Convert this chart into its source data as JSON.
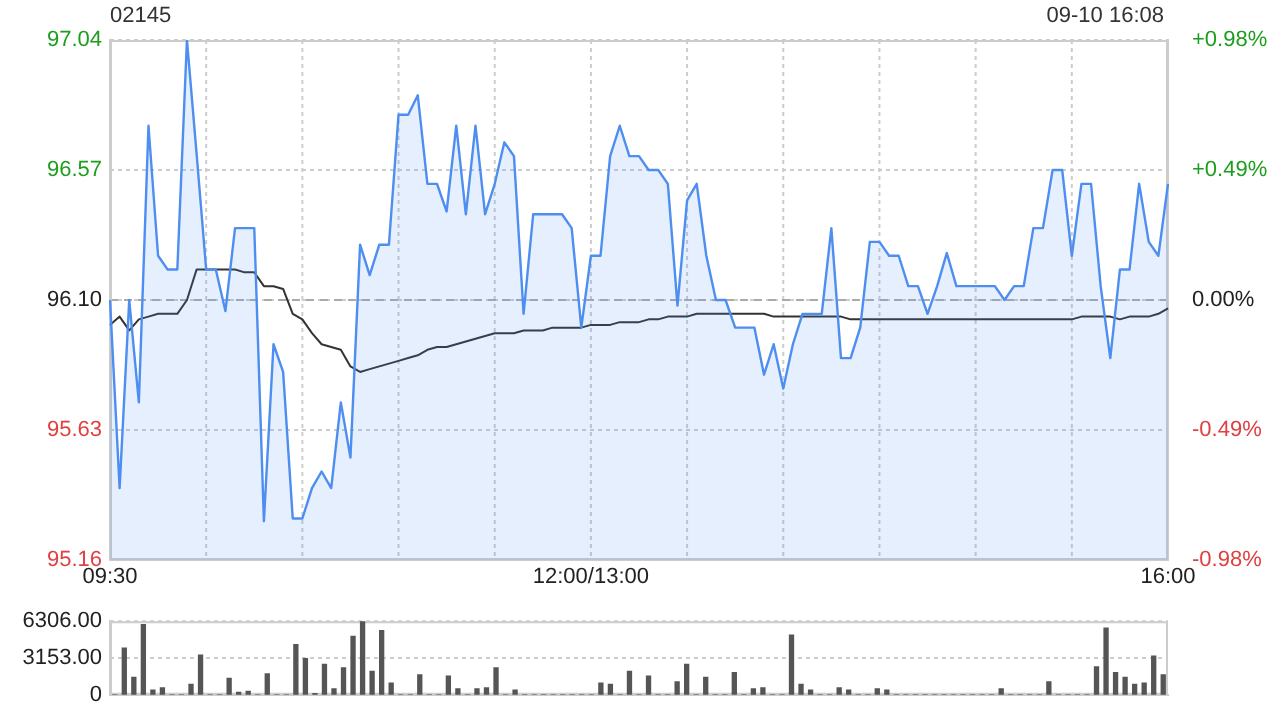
{
  "chart_data": [
    {
      "type": "area",
      "title": "02145",
      "subtitle": "09-10 16:08",
      "categories": [
        "09:30",
        null,
        null,
        null,
        null,
        null,
        null,
        null,
        null,
        null,
        null,
        null,
        null,
        null,
        null,
        null,
        null,
        null,
        null,
        null,
        null,
        null,
        null,
        null,
        null,
        null,
        null,
        null,
        null,
        null,
        null,
        null,
        null,
        null,
        null,
        null,
        null,
        null,
        null,
        null,
        null,
        null,
        null,
        null,
        null,
        null,
        null,
        null,
        null,
        null,
        "12:00/13:00",
        null,
        null,
        null,
        null,
        null,
        null,
        null,
        null,
        null,
        null,
        null,
        null,
        null,
        null,
        null,
        null,
        null,
        null,
        null,
        null,
        null,
        null,
        null,
        null,
        null,
        null,
        null,
        null,
        null,
        null,
        null,
        null,
        null,
        null,
        null,
        null,
        null,
        null,
        null,
        null,
        null,
        null,
        null,
        null,
        null,
        null,
        null,
        null,
        null,
        null,
        null,
        null,
        null,
        null,
        null,
        null,
        null,
        null,
        null,
        "16:00"
      ],
      "ylim": [
        95.16,
        97.04
      ],
      "yticks": [
        95.16,
        95.63,
        {
          "value": 96.1,
          "label": "96.10"
        },
        96.57,
        97.04
      ],
      "y2lim": [
        -0.98,
        0.98
      ],
      "y2ticks": [
        {
          "value": -0.98,
          "label": "-0.98%"
        },
        {
          "value": -0.49,
          "label": "-0.49%"
        },
        {
          "value": 0,
          "label": "0.00%"
        },
        {
          "value": 0.49,
          "label": "+0.49%"
        },
        {
          "value": 0.98,
          "label": "+0.98%"
        }
      ],
      "grid": true,
      "legend": false,
      "ref_lines": [
        {
          "axis": "y",
          "value": 96.1,
          "color": "#aaaaaa",
          "line_style": "dashed"
        }
      ],
      "series": [
        {
          "type": "area",
          "color": "#4d8ef0",
          "values": [
            96.1,
            95.42,
            96.1,
            95.73,
            96.73,
            96.26,
            96.21,
            96.21,
            97.04,
            96.63,
            96.21,
            96.21,
            96.06,
            96.36,
            96.36,
            96.36,
            95.3,
            95.94,
            95.84,
            95.31,
            95.31,
            95.42,
            95.48,
            95.42,
            95.73,
            95.53,
            96.3,
            96.19,
            96.3,
            96.3,
            96.77,
            96.77,
            96.84,
            96.52,
            96.52,
            96.42,
            96.73,
            96.41,
            96.73,
            96.41,
            96.52,
            96.67,
            96.62,
            96.05,
            96.41,
            96.41,
            96.41,
            96.41,
            96.36,
            96.0,
            96.26,
            96.26,
            96.62,
            96.73,
            96.62,
            96.62,
            96.57,
            96.57,
            96.52,
            96.08,
            96.46,
            96.52,
            96.26,
            96.1,
            96.1,
            96.0,
            96.0,
            96.0,
            95.83,
            95.94,
            95.78,
            95.94,
            96.05,
            96.05,
            96.05,
            96.36,
            95.89,
            95.89,
            96.0,
            96.31,
            96.31,
            96.26,
            96.26,
            96.15,
            96.15,
            96.05,
            96.15,
            96.27,
            96.15,
            96.15,
            96.15,
            96.15,
            96.15,
            96.1,
            96.15,
            96.15,
            96.36,
            96.36,
            96.57,
            96.57,
            96.26,
            96.52,
            96.52,
            96.15,
            95.89,
            96.21,
            96.21,
            96.52,
            96.31,
            96.26,
            96.52
          ]
        },
        {
          "type": "line",
          "color": "#333333",
          "values": [
            96.01,
            96.04,
            95.99,
            96.03,
            96.04,
            96.05,
            96.05,
            96.05,
            96.1,
            96.21,
            96.21,
            96.21,
            96.21,
            96.21,
            96.2,
            96.2,
            96.15,
            96.15,
            96.14,
            96.05,
            96.03,
            95.98,
            95.94,
            95.93,
            95.92,
            95.86,
            95.84,
            95.85,
            95.86,
            95.87,
            95.88,
            95.89,
            95.9,
            95.92,
            95.93,
            95.93,
            95.94,
            95.95,
            95.96,
            95.97,
            95.98,
            95.98,
            95.98,
            95.99,
            95.99,
            95.99,
            96.0,
            96.0,
            96.0,
            96.0,
            96.01,
            96.01,
            96.01,
            96.02,
            96.02,
            96.02,
            96.03,
            96.03,
            96.04,
            96.04,
            96.04,
            96.05,
            96.05,
            96.05,
            96.05,
            96.05,
            96.05,
            96.05,
            96.05,
            96.04,
            96.04,
            96.04,
            96.04,
            96.04,
            96.04,
            96.04,
            96.04,
            96.03,
            96.03,
            96.03,
            96.03,
            96.03,
            96.03,
            96.03,
            96.03,
            96.03,
            96.03,
            96.03,
            96.03,
            96.03,
            96.03,
            96.03,
            96.03,
            96.03,
            96.03,
            96.03,
            96.03,
            96.03,
            96.03,
            96.03,
            96.03,
            96.04,
            96.04,
            96.04,
            96.04,
            96.03,
            96.04,
            96.04,
            96.04,
            96.05,
            96.07
          ]
        }
      ]
    },
    {
      "type": "bar",
      "categories": [
        null,
        null,
        null,
        null,
        null,
        null,
        null,
        null,
        null,
        null,
        null,
        null,
        null,
        null,
        null,
        null,
        null,
        null,
        null,
        null,
        null,
        null,
        null,
        null,
        null,
        null,
        null,
        null,
        null,
        null,
        null,
        null,
        null,
        null,
        null,
        null,
        null,
        null,
        null,
        null,
        null,
        null,
        null,
        null,
        null,
        null,
        null,
        null,
        null,
        null,
        null,
        null,
        null,
        null,
        null,
        null,
        null,
        null,
        null,
        null,
        null,
        null,
        null,
        null,
        null,
        null,
        null,
        null,
        null,
        null,
        null,
        null,
        null,
        null,
        null,
        null,
        null,
        null,
        null,
        null,
        null,
        null,
        null,
        null,
        null,
        null,
        null,
        null,
        null,
        null,
        null,
        null,
        null,
        null,
        null,
        null,
        null,
        null,
        null,
        null,
        null,
        null,
        null,
        null,
        null,
        null,
        null,
        null,
        null,
        null,
        null
      ],
      "ylim": [
        0,
        6306
      ],
      "yticks": [
        0,
        {
          "value": 3153,
          "label": "3153.00"
        },
        {
          "value": 6306,
          "label": "6306.00"
        }
      ],
      "grid": "y",
      "legend": false,
      "color": "#555555",
      "values": [
        0,
        4000,
        1500,
        6000,
        400,
        600,
        0,
        0,
        900,
        3400,
        0,
        0,
        1400,
        200,
        300,
        0,
        1800,
        0,
        0,
        4300,
        3100,
        100,
        2600,
        500,
        2300,
        5000,
        6300,
        2000,
        5500,
        1000,
        0,
        0,
        1700,
        0,
        0,
        1600,
        500,
        0,
        500,
        600,
        2300,
        0,
        400,
        0,
        0,
        0,
        0,
        0,
        0,
        0,
        0,
        1000,
        900,
        0,
        2000,
        0,
        1600,
        0,
        0,
        1100,
        2600,
        0,
        1500,
        0,
        0,
        1900,
        0,
        500,
        600,
        0,
        0,
        5100,
        900,
        400,
        0,
        0,
        600,
        400,
        0,
        0,
        500,
        400,
        0,
        0,
        0,
        0,
        0,
        0,
        0,
        0,
        0,
        0,
        0,
        500,
        0,
        0,
        0,
        0,
        1100,
        0,
        0,
        0,
        0,
        2400,
        5700,
        1900,
        1500,
        900,
        1000,
        3300,
        1700
      ]
    }
  ]
}
